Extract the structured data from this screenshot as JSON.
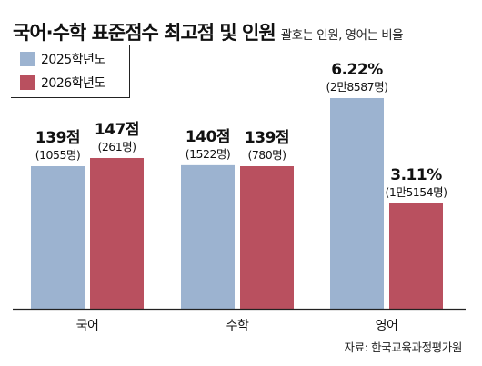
{
  "title": "국어·수학 표준점수 최고점 및 인원",
  "subtitle": "괄호는 인원, 영어는 비율",
  "source": "자료: 한국교육과정평가원",
  "colors": {
    "series_2025": "#9cb3d0",
    "series_2026": "#b9505f",
    "axis": "#222222"
  },
  "chart_data": {
    "type": "bar",
    "title": "국어·수학 표준점수 최고점 및 인원",
    "subtitle": "괄호는 인원, 영어는 비율",
    "categories": [
      "국어",
      "수학",
      "영어"
    ],
    "legend_position": "top-left",
    "grid": false,
    "series": [
      {
        "name": "2025학년도",
        "values": [
          139,
          140,
          6.22
        ],
        "value_labels": [
          "139점",
          "140점",
          "6.22%"
        ],
        "count_labels": [
          "(1055명)",
          "(1522명)",
          "(2만8587명)"
        ]
      },
      {
        "name": "2026학년도",
        "values": [
          147,
          139,
          3.11
        ],
        "value_labels": [
          "147점",
          "139점",
          "3.11%"
        ],
        "count_labels": [
          "(261명)",
          "(780명)",
          "(1만5154명)"
        ]
      }
    ]
  }
}
